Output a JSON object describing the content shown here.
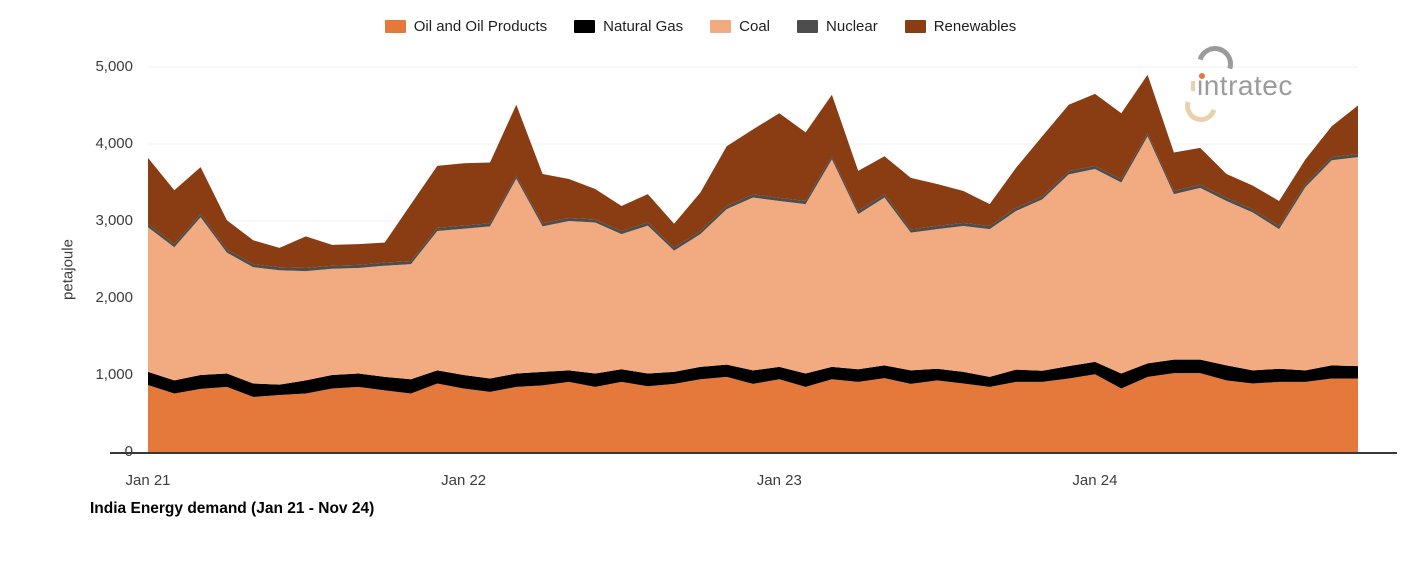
{
  "logo": {
    "text": "intratec"
  },
  "legend_note": "series order matches stacking bottom-to-top; legend shown left-to-right",
  "chart_data": {
    "type": "area",
    "stacked": true,
    "title": "India Energy demand (Jan 21 - Nov 24)",
    "xlabel": "",
    "ylabel": "petajoule",
    "ylim": [
      0,
      5000
    ],
    "grid": "faint horizontal lines at each 1,000",
    "legend_position": "top-center",
    "months": [
      "2021-01",
      "2021-02",
      "2021-03",
      "2021-04",
      "2021-05",
      "2021-06",
      "2021-07",
      "2021-08",
      "2021-09",
      "2021-10",
      "2021-11",
      "2021-12",
      "2022-01",
      "2022-02",
      "2022-03",
      "2022-04",
      "2022-05",
      "2022-06",
      "2022-07",
      "2022-08",
      "2022-09",
      "2022-10",
      "2022-11",
      "2022-12",
      "2023-01",
      "2023-02",
      "2023-03",
      "2023-04",
      "2023-05",
      "2023-06",
      "2023-07",
      "2023-08",
      "2023-09",
      "2023-10",
      "2023-11",
      "2023-12",
      "2024-01",
      "2024-02",
      "2024-03",
      "2024-04",
      "2024-05",
      "2024-06",
      "2024-07",
      "2024-08",
      "2024-09",
      "2024-10",
      "2024-11"
    ],
    "x_ticks": [
      {
        "index": 0,
        "label": "Jan 21"
      },
      {
        "index": 12,
        "label": "Jan 22"
      },
      {
        "index": 24,
        "label": "Jan 23"
      },
      {
        "index": 36,
        "label": "Jan 24"
      }
    ],
    "y_ticks": [
      {
        "value": 0,
        "label": "0"
      },
      {
        "value": 1000,
        "label": "1,000"
      },
      {
        "value": 2000,
        "label": "2,000"
      },
      {
        "value": 3000,
        "label": "3,000"
      },
      {
        "value": 4000,
        "label": "4,000"
      },
      {
        "value": 5000,
        "label": "5,000"
      }
    ],
    "series": [
      {
        "name": "Oil and Oil Products",
        "color": "#E5793B",
        "values": [
          870,
          760,
          820,
          845,
          715,
          740,
          760,
          825,
          845,
          800,
          760,
          890,
          825,
          780,
          845,
          865,
          910,
          845,
          910,
          855,
          885,
          945,
          975,
          885,
          945,
          845,
          945,
          910,
          960,
          885,
          930,
          890,
          845,
          910,
          910,
          955,
          1010,
          825,
          975,
          1025,
          1025,
          930,
          890,
          910,
          910,
          955,
          955
        ]
      },
      {
        "name": "Natural Gas",
        "color": "#000000",
        "values": [
          170,
          170,
          180,
          175,
          175,
          135,
          170,
          175,
          175,
          175,
          185,
          170,
          175,
          175,
          175,
          175,
          150,
          175,
          165,
          165,
          155,
          160,
          160,
          175,
          160,
          175,
          160,
          165,
          165,
          175,
          150,
          150,
          130,
          160,
          145,
          160,
          160,
          195,
          175,
          175,
          175,
          195,
          170,
          170,
          150,
          170,
          160
        ]
      },
      {
        "name": "Coal",
        "color": "#F2AA80",
        "values": [
          1880,
          1730,
          2050,
          1570,
          1510,
          1485,
          1420,
          1380,
          1370,
          1445,
          1495,
          1810,
          1900,
          1975,
          2530,
          1890,
          1940,
          1960,
          1755,
          1920,
          1575,
          1725,
          2020,
          2245,
          2155,
          2200,
          2695,
          2015,
          2180,
          1790,
          1815,
          1895,
          1920,
          2060,
          2225,
          2490,
          2505,
          2480,
          2950,
          2150,
          2230,
          2135,
          2050,
          1815,
          2380,
          2665,
          2715
        ]
      },
      {
        "name": "Nuclear",
        "color": "#4D4D4D",
        "values": [
          40,
          40,
          40,
          40,
          40,
          40,
          40,
          40,
          40,
          40,
          40,
          40,
          40,
          40,
          40,
          40,
          40,
          40,
          40,
          40,
          40,
          40,
          40,
          40,
          40,
          40,
          40,
          40,
          40,
          40,
          40,
          40,
          40,
          40,
          40,
          40,
          40,
          40,
          40,
          40,
          40,
          40,
          40,
          40,
          40,
          40,
          40
        ]
      },
      {
        "name": "Renewables",
        "color": "#8A3C12",
        "values": [
          860,
          700,
          610,
          380,
          310,
          250,
          410,
          270,
          270,
          260,
          740,
          805,
          810,
          790,
          920,
          640,
          505,
          395,
          325,
          370,
          310,
          500,
          775,
          845,
          1100,
          890,
          800,
          520,
          495,
          670,
          545,
          415,
          285,
          520,
          780,
          865,
          935,
          860,
          760,
          500,
          480,
          310,
          310,
          325,
          320,
          400,
          630
        ]
      }
    ]
  }
}
